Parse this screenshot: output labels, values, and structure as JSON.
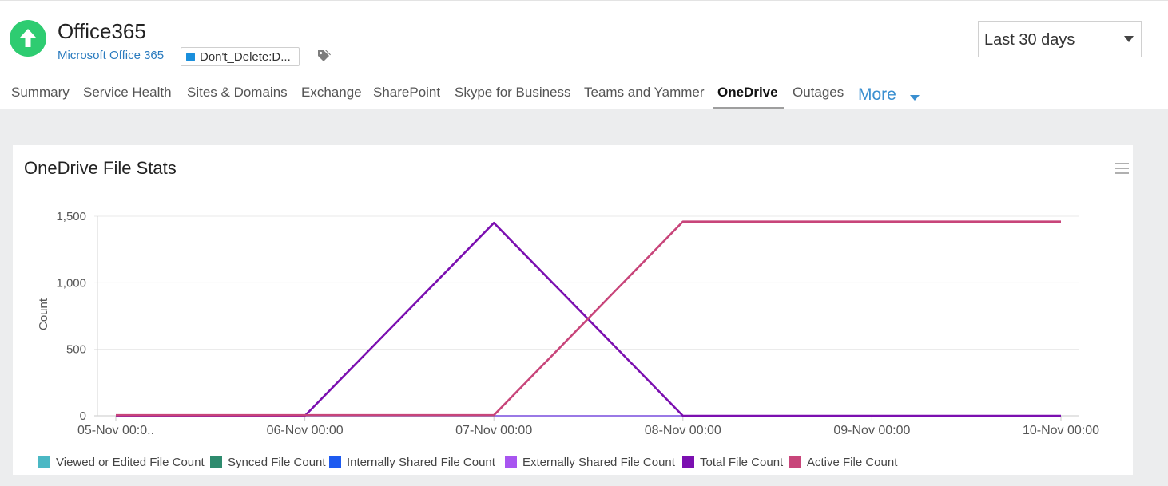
{
  "header": {
    "title": "Office365",
    "subtitle": "Microsoft Office 365",
    "tag_label": "Don't_Delete:D...",
    "status_color": "#2ecc71",
    "status_icon": "arrow-up-icon"
  },
  "period_select": {
    "value": "Last 30 days"
  },
  "tabs": [
    {
      "label": "Summary"
    },
    {
      "label": "Service Health"
    },
    {
      "label": "Sites & Domains"
    },
    {
      "label": "Exchange"
    },
    {
      "label": "SharePoint"
    },
    {
      "label": "Skype for Business"
    },
    {
      "label": "Teams and Yammer"
    },
    {
      "label": "OneDrive",
      "active": true
    },
    {
      "label": "Outages"
    }
  ],
  "more_tab": {
    "label": "More"
  },
  "card": {
    "title": "OneDrive File Stats"
  },
  "chart_data": {
    "type": "line",
    "ylabel": "Count",
    "ylim": [
      0,
      1500
    ],
    "yticks": [
      "0",
      "500",
      "1,000",
      "1,500"
    ],
    "xticks": [
      "05-Nov 00:0..",
      "06-Nov 00:00",
      "07-Nov 00:00",
      "08-Nov 00:00",
      "09-Nov 00:00",
      "10-Nov 00:00"
    ],
    "grid": true,
    "legend_position": "bottom",
    "series": [
      {
        "name": "Viewed or Edited File Count",
        "color": "#4bb8c4",
        "points": [
          [
            "05-Nov 00:00",
            0
          ],
          [
            "10-Nov 00:00",
            0
          ]
        ]
      },
      {
        "name": "Synced File Count",
        "color": "#2e8b6e",
        "points": [
          [
            "05-Nov 00:00",
            0
          ],
          [
            "10-Nov 00:00",
            0
          ]
        ]
      },
      {
        "name": "Internally Shared File Count",
        "color": "#1e5bf0",
        "points": [
          [
            "05-Nov 00:00",
            0
          ],
          [
            "10-Nov 00:00",
            0
          ]
        ]
      },
      {
        "name": "Externally Shared File Count",
        "color": "#a855f0",
        "points": [
          [
            "05-Nov 00:00",
            0
          ],
          [
            "10-Nov 00:00",
            0
          ]
        ]
      },
      {
        "name": "Total File Count",
        "color": "#7b0fb0",
        "points": [
          [
            "05-Nov 00:00",
            0
          ],
          [
            "06-Nov 00:00",
            0
          ],
          [
            "07-Nov 00:00",
            1450
          ],
          [
            "08-Nov 00:00",
            0
          ],
          [
            "10-Nov 00:00",
            0
          ]
        ]
      },
      {
        "name": "Active File Count",
        "color": "#c8457a",
        "points": [
          [
            "05-Nov 00:00",
            5
          ],
          [
            "07-Nov 00:00",
            5
          ],
          [
            "08-Nov 00:00",
            1460
          ],
          [
            "10-Nov 00:00",
            1460
          ]
        ]
      }
    ]
  }
}
